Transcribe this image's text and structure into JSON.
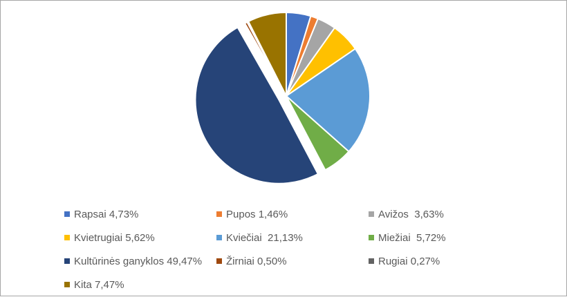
{
  "chart_data": {
    "type": "pie",
    "title": "",
    "slices": [
      {
        "label": "Rapsai 4,73%",
        "value": 4.73,
        "color": "#4472C4"
      },
      {
        "label": "Pupos 1,46%",
        "value": 1.46,
        "color": "#ED7D31"
      },
      {
        "label": "Avižos  3,63%",
        "value": 3.63,
        "color": "#A5A5A5"
      },
      {
        "label": "Kvietrugiai 5,62%",
        "value": 5.62,
        "color": "#FFC000"
      },
      {
        "label": "Kviečiai  21,13%",
        "value": 21.13,
        "color": "#5B9BD5"
      },
      {
        "label": "Miežiai  5,72%",
        "value": 5.72,
        "color": "#70AD47"
      },
      {
        "label": "Kultūrinės ganyklos 49,47%",
        "value": 49.47,
        "color": "#264478",
        "exploded": true
      },
      {
        "label": "Žirniai 0,50%",
        "value": 0.5,
        "color": "#9E480E"
      },
      {
        "label": "Rugiai 0,27%",
        "value": 0.27,
        "color": "#636363"
      },
      {
        "label": "Kita 7,47%",
        "value": 7.47,
        "color": "#997300"
      }
    ],
    "legend_position": "bottom"
  }
}
